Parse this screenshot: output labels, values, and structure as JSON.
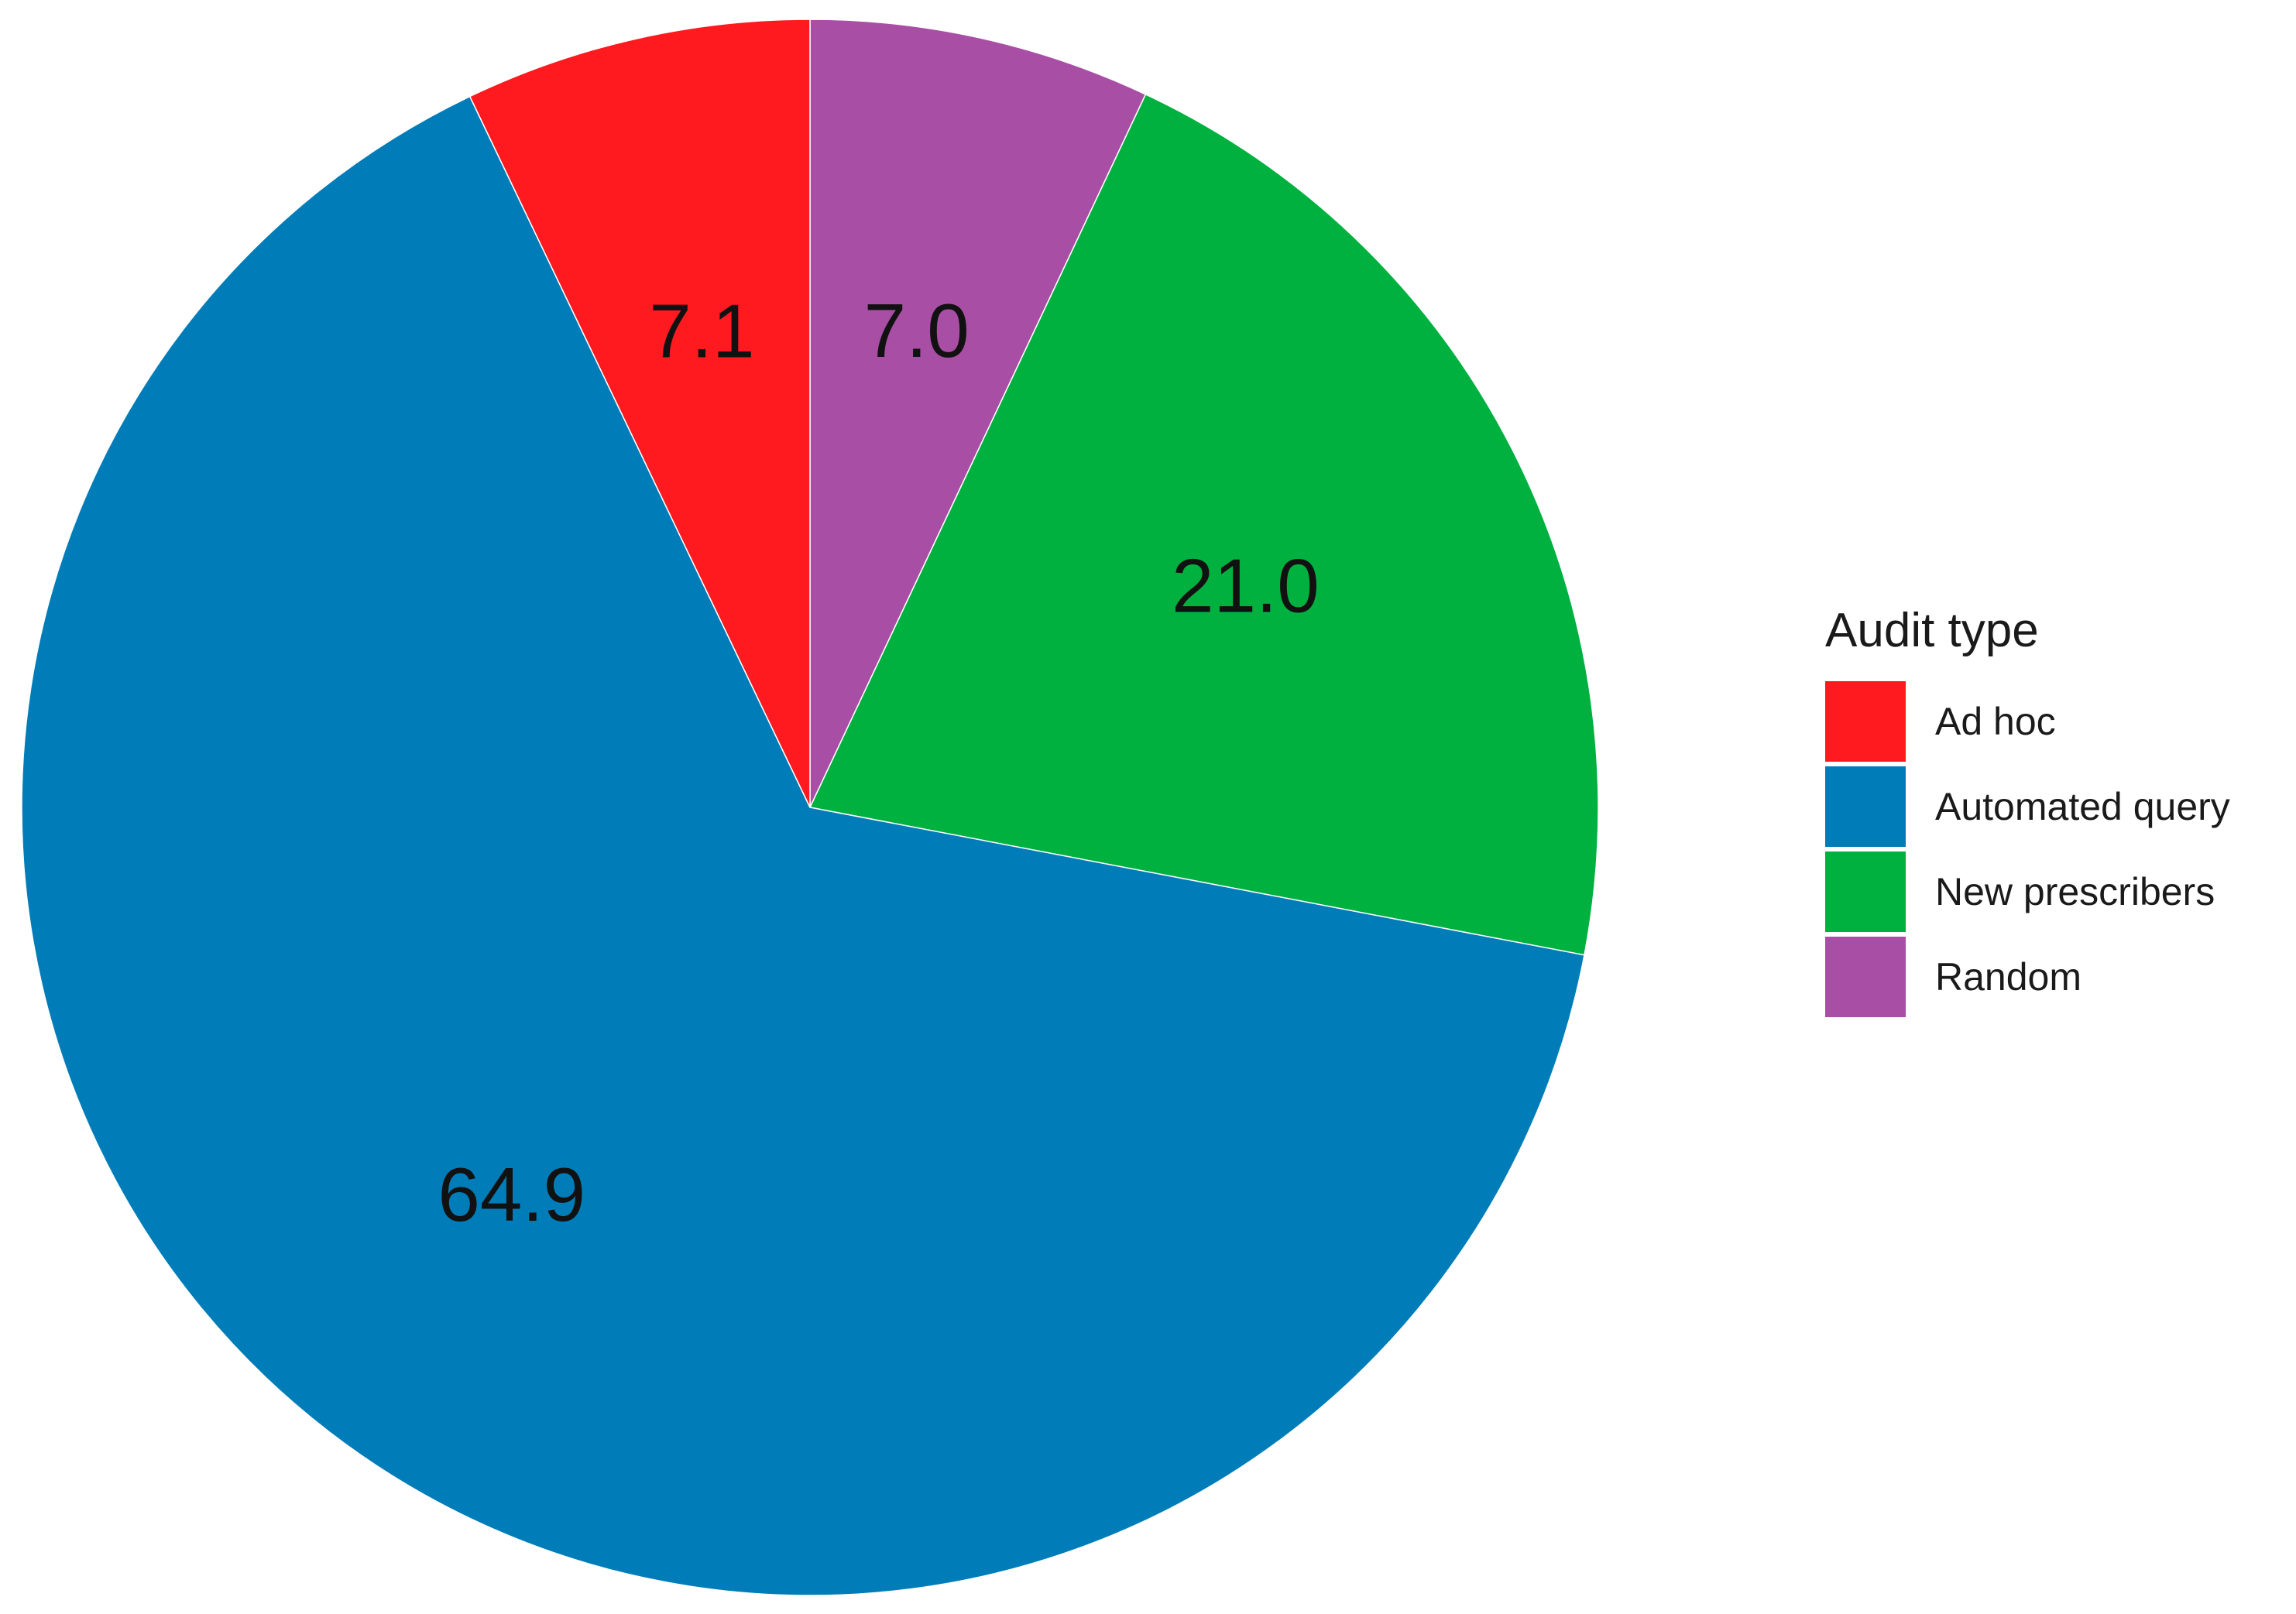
{
  "chart_data": {
    "type": "pie",
    "title": "",
    "start": "top",
    "direction": "clockwise",
    "legend_title": "Audit type",
    "legend_position": "right",
    "categories": [
      "Ad hoc",
      "Automated query",
      "New prescribers",
      "Random"
    ],
    "values": [
      7.1,
      64.9,
      21.0,
      7.0
    ],
    "value_labels": [
      "7.1",
      "64.9",
      "21.0",
      "7.0"
    ],
    "colors": [
      "#ff1a1f",
      "#007db8",
      "#00b140",
      "#a84ea5"
    ],
    "draw_order": [
      "Random",
      "New prescribers",
      "Automated query",
      "Ad hoc"
    ]
  }
}
